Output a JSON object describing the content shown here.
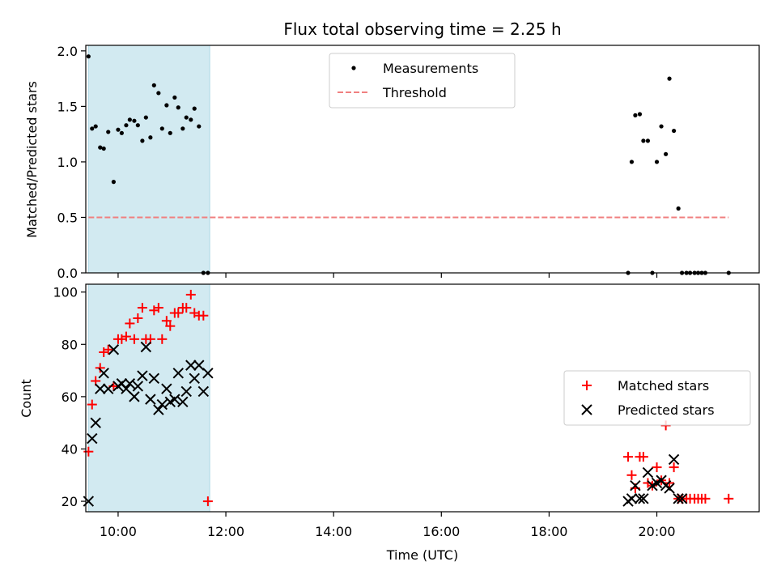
{
  "chart_data": [
    {
      "type": "scatter",
      "title": "Flux total observing time = 2.25 h",
      "ylabel": "Matched/Predicted stars",
      "xlabel": "",
      "xlim": [
        "09:24",
        "21:54"
      ],
      "ylim": [
        0,
        2.05
      ],
      "yticks": [
        0.0,
        0.5,
        1.0,
        1.5,
        2.0
      ],
      "ytick_labels": [
        "0.0",
        "0.5",
        "1.0",
        "1.5",
        "2.0"
      ],
      "grid": false,
      "legend_position": "upper-center",
      "shaded_interval": {
        "start": "09:27",
        "end": "11:42",
        "color": "#add8e6"
      },
      "series": [
        {
          "name": "Measurements",
          "marker": "dot",
          "color": "#000000",
          "x": [
            "09:27",
            "09:31",
            "09:35",
            "09:40",
            "09:44",
            "09:49",
            "09:55",
            "10:00",
            "10:04",
            "10:09",
            "10:13",
            "10:18",
            "10:22",
            "10:27",
            "10:31",
            "10:36",
            "10:40",
            "10:45",
            "10:49",
            "10:54",
            "10:58",
            "11:03",
            "11:07",
            "11:12",
            "11:16",
            "11:21",
            "11:25",
            "11:30",
            "11:35",
            "11:40",
            "19:28",
            "19:32",
            "19:36",
            "19:41",
            "19:45",
            "19:50",
            "19:55",
            "20:00",
            "20:05",
            "20:10",
            "20:14",
            "20:19",
            "20:24",
            "20:28",
            "20:33",
            "20:37",
            "20:42",
            "20:46",
            "20:50",
            "20:54",
            "21:20"
          ],
          "y": [
            1.95,
            1.3,
            1.32,
            1.13,
            1.12,
            1.27,
            0.82,
            1.29,
            1.26,
            1.33,
            1.38,
            1.37,
            1.33,
            1.19,
            1.4,
            1.22,
            1.69,
            1.62,
            1.3,
            1.51,
            1.26,
            1.58,
            1.49,
            1.3,
            1.4,
            1.38,
            1.48,
            1.32,
            0.0,
            0.0,
            0.0,
            1.0,
            1.42,
            1.43,
            1.19,
            1.19,
            0.0,
            1.0,
            1.32,
            1.07,
            1.75,
            1.28,
            0.58,
            0.0,
            0.0,
            0.0,
            0.0,
            0.0,
            0.0,
            0.0,
            0.0
          ]
        },
        {
          "name": "Threshold",
          "marker": "dashed-line",
          "color": "#f08080",
          "x": [
            "09:27",
            "21:20"
          ],
          "y": [
            0.5,
            0.5
          ]
        }
      ]
    },
    {
      "type": "scatter",
      "title": "",
      "ylabel": "Count",
      "xlabel": "Time (UTC)",
      "xlim": [
        "09:24",
        "21:54"
      ],
      "ylim": [
        16,
        103
      ],
      "yticks": [
        20,
        40,
        60,
        80,
        100
      ],
      "ytick_labels": [
        "20",
        "40",
        "60",
        "80",
        "100"
      ],
      "xticks": [
        "10:00",
        "12:00",
        "14:00",
        "16:00",
        "18:00",
        "20:00"
      ],
      "xtick_labels": [
        "10:00",
        "12:00",
        "14:00",
        "16:00",
        "18:00",
        "20:00"
      ],
      "grid": false,
      "legend_position": "center-right",
      "shaded_interval": {
        "start": "09:27",
        "end": "11:42",
        "color": "#add8e6"
      },
      "series": [
        {
          "name": "Matched stars",
          "marker": "plus",
          "color": "#ff0000",
          "x": [
            "09:27",
            "09:31",
            "09:35",
            "09:40",
            "09:44",
            "09:49",
            "09:55",
            "10:00",
            "10:04",
            "10:09",
            "10:13",
            "10:18",
            "10:22",
            "10:27",
            "10:31",
            "10:36",
            "10:40",
            "10:45",
            "10:49",
            "10:54",
            "10:58",
            "11:03",
            "11:07",
            "11:12",
            "11:16",
            "11:21",
            "11:25",
            "11:30",
            "11:35",
            "11:40",
            "19:28",
            "19:32",
            "19:36",
            "19:41",
            "19:45",
            "19:50",
            "19:55",
            "20:00",
            "20:05",
            "20:10",
            "20:14",
            "20:19",
            "20:24",
            "20:28",
            "20:33",
            "20:37",
            "20:42",
            "20:46",
            "20:50",
            "20:54",
            "21:20"
          ],
          "y": [
            39,
            57,
            66,
            71,
            77,
            78,
            64,
            82,
            82,
            83,
            88,
            82,
            90,
            94,
            82,
            82,
            93,
            94,
            82,
            89,
            87,
            92,
            92,
            94,
            94,
            99,
            92,
            91,
            91,
            20,
            37,
            30,
            25,
            37,
            37,
            27,
            26,
            33,
            28,
            49,
            27,
            33,
            21,
            21,
            21,
            21,
            21,
            21,
            21,
            21,
            21
          ]
        },
        {
          "name": "Predicted stars",
          "marker": "x",
          "color": "#000000",
          "x": [
            "09:27",
            "09:31",
            "09:35",
            "09:40",
            "09:44",
            "09:49",
            "09:55",
            "10:00",
            "10:04",
            "10:09",
            "10:13",
            "10:18",
            "10:22",
            "10:27",
            "10:31",
            "10:36",
            "10:40",
            "10:45",
            "10:49",
            "10:54",
            "10:58",
            "11:03",
            "11:07",
            "11:12",
            "11:16",
            "11:21",
            "11:25",
            "11:30",
            "11:35",
            "11:40",
            "19:28",
            "19:32",
            "19:36",
            "19:41",
            "19:45",
            "19:50",
            "19:55",
            "20:00",
            "20:05",
            "20:10",
            "20:14",
            "20:19",
            "20:24",
            "20:28"
          ],
          "y": [
            20,
            44,
            50,
            63,
            69,
            63,
            78,
            64,
            65,
            63,
            65,
            60,
            64,
            68,
            79,
            59,
            67,
            55,
            57,
            63,
            58,
            59,
            69,
            58,
            62,
            72,
            67,
            72,
            62,
            69,
            20,
            21,
            26,
            21,
            21,
            31,
            26,
            27,
            28,
            26,
            25,
            36,
            21,
            21
          ]
        }
      ]
    }
  ]
}
